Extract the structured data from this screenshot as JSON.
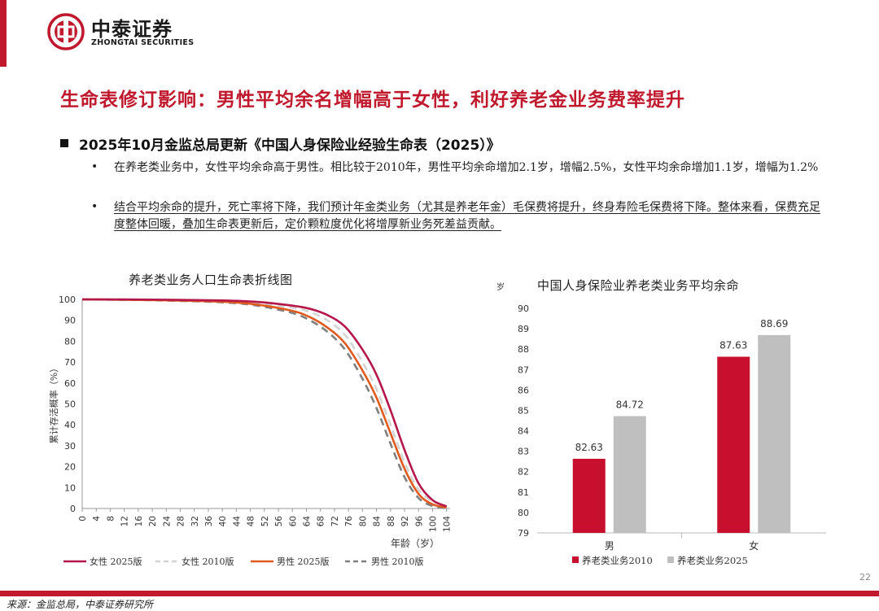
{
  "brand": {
    "name_cn": "中泰证券",
    "name_en": "ZHONGTAI SECURITIES"
  },
  "title": "生命表修订影响：男性平均余名增幅高于女性，利好养老金业务费率提升",
  "bullet_main": "2025年10月金监总局更新《中国人身保险业经验生命表（2025）》",
  "sub_bullets": [
    "在养老类业务中，女性平均余命高于男性。相比较于2010年，男性平均余命增加2.1岁，增幅2.5%，女性平均余命增加1.1岁，增幅为1.2%",
    "结合平均余命的提升，死亡率将下降，我们预计年金类业务（尤其是养老年金）毛保费将提升，终身寿险毛保费将下降。整体来看，保费充足度整体回暖，叠加生命表更新后，定价颗粒度优化将增厚新业务死差益贡献。"
  ],
  "bullet_symbol": "•",
  "colors": {
    "brand_red": "#c0182c",
    "female_2025": "#b5174a",
    "female_2010": "#d3d3d3",
    "male_2025": "#e05a1e",
    "male_2010": "#7f7f7f",
    "bar_2010": "#c8102e",
    "bar_2025": "#bfbfbf"
  },
  "chart_data": [
    {
      "type": "line",
      "title": "养老类业务人口生命表折线图",
      "xlabel": "年龄（岁）",
      "ylabel": "累计存活概率（%）",
      "x_ticks": [
        0,
        4,
        8,
        12,
        16,
        20,
        24,
        28,
        32,
        36,
        40,
        44,
        48,
        52,
        56,
        60,
        64,
        68,
        72,
        76,
        80,
        84,
        88,
        92,
        96,
        100,
        104
      ],
      "y_ticks": [
        0,
        10,
        20,
        30,
        40,
        50,
        60,
        70,
        80,
        90,
        100
      ],
      "xlim": [
        0,
        105
      ],
      "ylim": [
        0,
        100
      ],
      "legend_position": "bottom",
      "series": [
        {
          "name": "女性 2025版",
          "style": "solid",
          "color": "#b5174a",
          "x": [
            0,
            20,
            40,
            50,
            60,
            65,
            70,
            75,
            80,
            84,
            88,
            92,
            96,
            100,
            104
          ],
          "y": [
            100,
            99.9,
            99.5,
            98.8,
            97,
            95.5,
            92.5,
            87,
            76,
            64,
            47,
            28,
            12,
            4,
            1
          ]
        },
        {
          "name": "女性 2010版",
          "style": "dashed",
          "color": "#d3d3d3",
          "x": [
            0,
            20,
            40,
            50,
            60,
            65,
            70,
            75,
            80,
            84,
            88,
            92,
            96,
            100,
            104
          ],
          "y": [
            100,
            99.8,
            99.3,
            98.3,
            96,
            94,
            90,
            83,
            70,
            57,
            40,
            22,
            9,
            3.5,
            1.5
          ]
        },
        {
          "name": "男性 2025版",
          "style": "solid",
          "color": "#e05a1e",
          "x": [
            0,
            20,
            40,
            50,
            60,
            65,
            70,
            75,
            80,
            84,
            88,
            92,
            96,
            100,
            104
          ],
          "y": [
            100,
            99.7,
            98.9,
            97.5,
            94.5,
            91.5,
            86.5,
            79,
            66,
            53,
            36,
            19,
            7,
            2,
            0.5
          ]
        },
        {
          "name": "男性 2010版",
          "style": "dashed",
          "color": "#7f7f7f",
          "x": [
            0,
            20,
            40,
            50,
            60,
            65,
            70,
            75,
            80,
            84,
            88,
            92,
            96,
            100,
            104
          ],
          "y": [
            100,
            99.6,
            98.6,
            97,
            93.5,
            90,
            84.5,
            76,
            62,
            48,
            31,
            15,
            5,
            1.2,
            0.3
          ]
        }
      ]
    },
    {
      "type": "bar",
      "title": "中国人身保险业养老类业务平均余命",
      "ylabel": "岁",
      "categories": [
        "男",
        "女"
      ],
      "ylim": [
        79,
        90
      ],
      "y_ticks": [
        79,
        80,
        81,
        82,
        83,
        84,
        85,
        86,
        87,
        88,
        89,
        90
      ],
      "legend_position": "bottom",
      "series": [
        {
          "name": "养老类业务2010",
          "color": "#c8102e",
          "values": [
            82.63,
            87.63
          ],
          "labels": [
            "82.63",
            "87.63"
          ]
        },
        {
          "name": "养老类业务2025",
          "color": "#bfbfbf",
          "values": [
            84.72,
            88.69
          ],
          "labels": [
            "84.72",
            "88.69"
          ]
        }
      ]
    }
  ],
  "page_number": "22",
  "source": "来源：金监总局，中泰证券研究所"
}
